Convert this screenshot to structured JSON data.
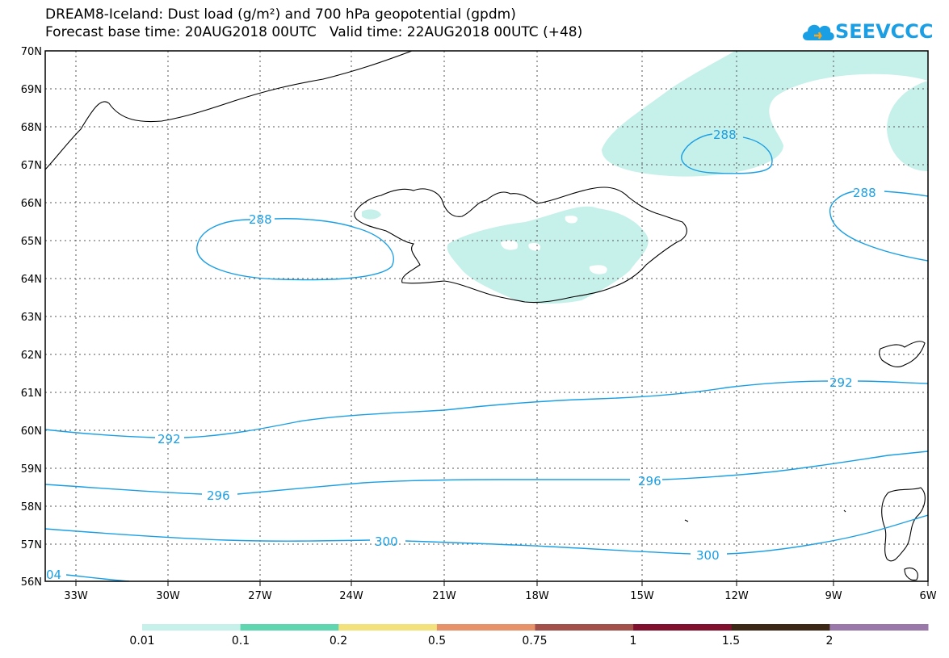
{
  "header": {
    "title_line1": "DREAM8-Iceland: Dust load (g/m²) and 700 hPa geopotential (gpdm)",
    "title_line2": "Forecast base time: 20AUG2018 00UTC   Valid time: 22AUG2018 00UTC (+48)"
  },
  "logo": {
    "text": "SEEVCCC",
    "icon": "cloud-icon",
    "color": "#1a9fe4"
  },
  "map": {
    "lat_labels": [
      "70N",
      "69N",
      "68N",
      "67N",
      "66N",
      "65N",
      "64N",
      "63N",
      "62N",
      "61N",
      "60N",
      "59N",
      "58N",
      "57N",
      "56N"
    ],
    "lon_labels": [
      "33W",
      "30W",
      "27W",
      "24W",
      "21W",
      "18W",
      "15W",
      "12W",
      "9W",
      "6W"
    ],
    "contour_color": "#1a9fe4",
    "contours": [
      {
        "label": "288"
      },
      {
        "label": "288"
      },
      {
        "label": "288"
      },
      {
        "label": "292"
      },
      {
        "label": "292"
      },
      {
        "label": "296"
      },
      {
        "label": "296"
      },
      {
        "label": "300"
      },
      {
        "label": "300"
      },
      {
        "label": "04"
      }
    ]
  },
  "legend": {
    "colors": [
      "#c6f0ea",
      "#5fd6b0",
      "#f3e27b",
      "#e8926a",
      "#a4504a",
      "#80102e",
      "#3c2814",
      "#9a78aa"
    ],
    "labels": [
      "0.01",
      "0.1",
      "0.2",
      "0.5",
      "0.75",
      "1",
      "1.5",
      "2"
    ]
  }
}
